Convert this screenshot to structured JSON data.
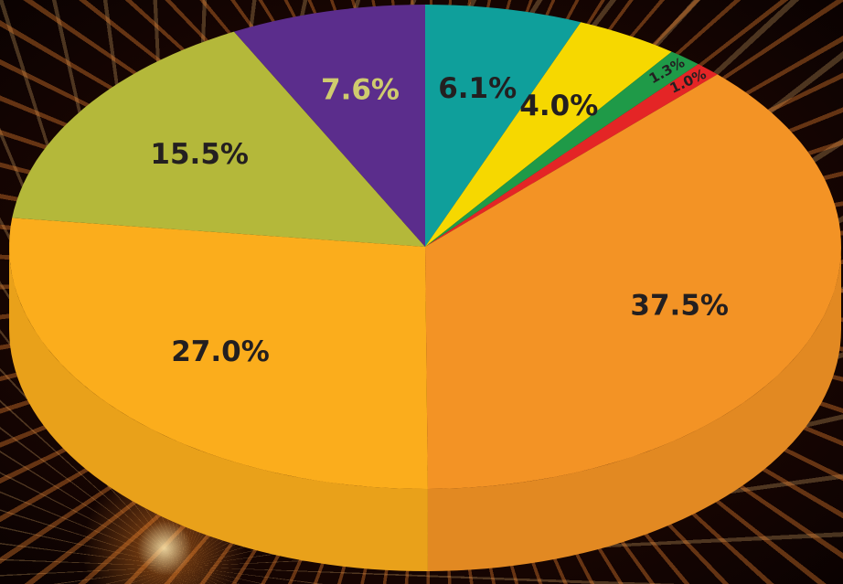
{
  "chart_data": {
    "type": "pie",
    "values": [
      6.1,
      4.0,
      1.3,
      1.0,
      37.5,
      27.0,
      15.5,
      7.6
    ],
    "value_labels": [
      "6.1%",
      "4.0%",
      "1.3%",
      "1.0%",
      "37.5%",
      "27.0%",
      "15.5%",
      "7.6%"
    ],
    "colors": [
      "#0f9f9b",
      "#f6d800",
      "#1f9a48",
      "#e42526",
      "#f39325",
      "#fbad1c",
      "#b4b83a",
      "#5b2d8c"
    ],
    "label_colors": [
      "#231f20",
      "#231f20",
      "#231f20",
      "#231f20",
      "#231f20",
      "#231f20",
      "#231f20",
      "#cfcb6e"
    ]
  }
}
